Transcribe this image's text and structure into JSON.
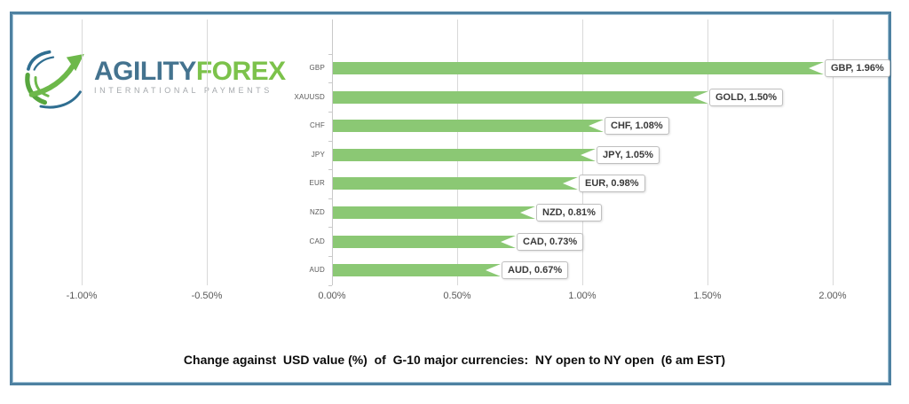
{
  "logo": {
    "brand_primary": "AGILITY",
    "brand_secondary": "FOREX",
    "tagline": "INTERNATIONAL PAYMENTS"
  },
  "chart_data": {
    "type": "bar",
    "orientation": "horizontal",
    "categories": [
      "GBP",
      "XAUUSD",
      "CHF",
      "JPY",
      "EUR",
      "NZD",
      "CAD",
      "AUD"
    ],
    "values": [
      1.96,
      1.5,
      1.08,
      1.05,
      0.98,
      0.81,
      0.73,
      0.67
    ],
    "data_labels": [
      "GBP, 1.96%",
      "GOLD, 1.50%",
      "CHF, 1.08%",
      "JPY, 1.05%",
      "EUR, 0.98%",
      "NZD, 0.81%",
      "CAD, 0.73%",
      "AUD, 0.67%"
    ],
    "x_ticks": [
      "-1.00%",
      "-0.50%",
      "0.00%",
      "0.50%",
      "1.00%",
      "1.50%",
      "2.00%"
    ],
    "x_tick_values": [
      -1.0,
      -0.5,
      0.0,
      0.5,
      1.0,
      1.5,
      2.0
    ],
    "xlim": [
      -1.25,
      2.25
    ],
    "grid": true,
    "legend": "none",
    "bar_color": "#8bc874",
    "caption": "Change against  USD value (%)  of  G-10 major currencies:  NY open to NY open  (6 am EST)"
  },
  "colors": {
    "frame_border": "#4e81a1",
    "gridline": "#d9d9d9",
    "axis_text": "#595959",
    "callout_border": "#bfbfbf",
    "callout_text": "#3a3a3a",
    "brand_blue": "#44738f",
    "brand_green": "#7cc24b"
  }
}
